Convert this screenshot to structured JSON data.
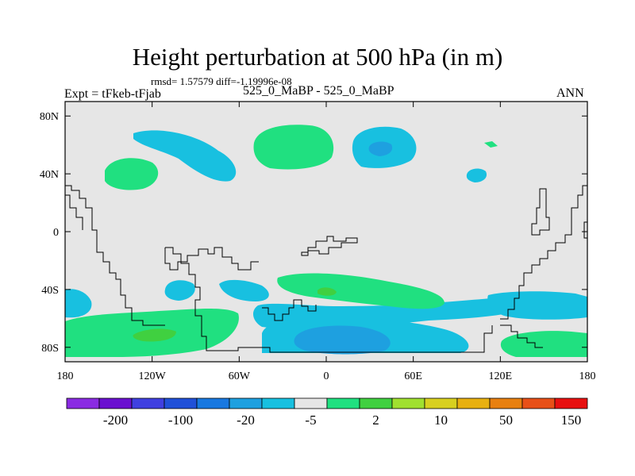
{
  "title": "Height perturbation at 500 hPa (in m)",
  "stats": "rmsd= 1.57579 diff=-1.19996e-08",
  "left_label": "Expt = tFkeb-tFjab",
  "center_label": "525_0_MaBP - 525_0_MaBP",
  "right_label": "ANN",
  "map": {
    "projection": "cylindrical equidistant",
    "lon_range": [
      -180,
      180
    ],
    "lat_range": [
      -90,
      90
    ],
    "background_color": "#e6e6e6",
    "lat_ticks": [
      {
        "value": 80,
        "label": "80N"
      },
      {
        "value": 40,
        "label": "40N"
      },
      {
        "value": 0,
        "label": "0"
      },
      {
        "value": -40,
        "label": "40S"
      },
      {
        "value": -80,
        "label": "80S"
      }
    ],
    "lon_ticks": [
      {
        "value": -180,
        "label": "180"
      },
      {
        "value": -120,
        "label": "120W"
      },
      {
        "value": -60,
        "label": "60W"
      },
      {
        "value": 0,
        "label": "0"
      },
      {
        "value": 60,
        "label": "60E"
      },
      {
        "value": 120,
        "label": "120E"
      },
      {
        "value": 180,
        "label": "180"
      }
    ]
  },
  "colorbar": {
    "colors": [
      "#8a2be2",
      "#6a10d0",
      "#4040e0",
      "#2050d8",
      "#1878e0",
      "#1ea0e0",
      "#18c0e0",
      "#e6e6e6",
      "#20e080",
      "#40d040",
      "#a0e030",
      "#d8d020",
      "#e8b010",
      "#e88010",
      "#e85018",
      "#e81010"
    ],
    "labels": [
      "-200",
      "-100",
      "-20",
      "-5",
      "2",
      "10",
      "50",
      "150"
    ]
  }
}
